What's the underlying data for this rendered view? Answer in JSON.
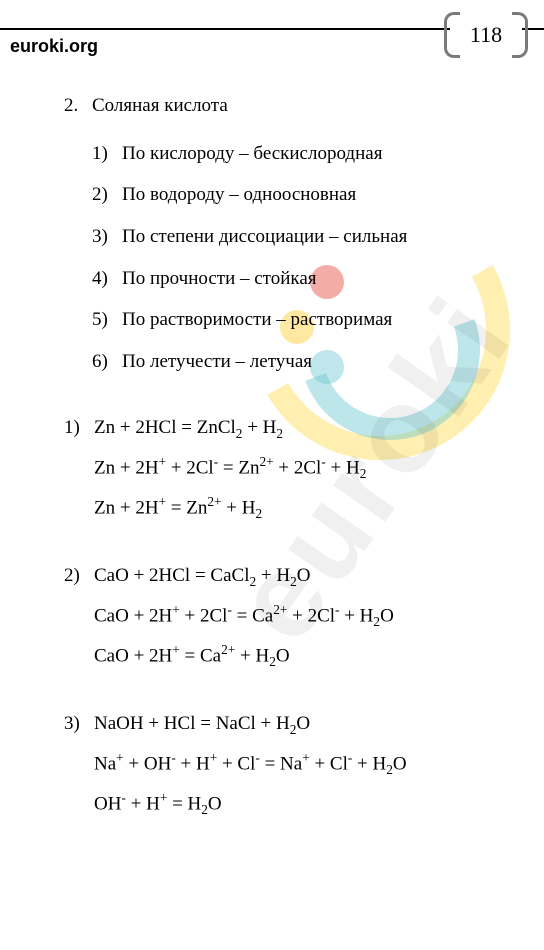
{
  "page_number": "118",
  "site": "euroki.org",
  "watermark_text": "euroki",
  "section": {
    "number": "2.",
    "title": "Соляная кислота",
    "properties": [
      {
        "n": "1)",
        "text": "По кислороду – бескислородная"
      },
      {
        "n": "2)",
        "text": "По водороду – одноосновная"
      },
      {
        "n": "3)",
        "text": "По степени диссоциации – сильная"
      },
      {
        "n": "4)",
        "text": "По прочности – стойкая"
      },
      {
        "n": "5)",
        "text": "По растворимости – растворимая"
      },
      {
        "n": "6)",
        "text": "По летучести – летучая"
      }
    ]
  },
  "equations": [
    {
      "n": "1)",
      "lines": [
        "Zn + 2HCl = ZnCl<sub>2</sub> + H<sub>2</sub>",
        "Zn + 2H<sup>+</sup> + 2Cl<sup>-</sup> = Zn<sup>2+</sup> + 2Cl<sup>-</sup> + H<sub>2</sub>",
        "Zn + 2H<sup>+</sup> = Zn<sup>2+</sup> + H<sub>2</sub>"
      ]
    },
    {
      "n": "2)",
      "lines": [
        "CaO + 2HCl = CaCl<sub>2</sub> + H<sub>2</sub>O",
        "CaO + 2H<sup>+</sup> + 2Cl<sup>-</sup> = Ca<sup>2+</sup> + 2Cl<sup>-</sup> + H<sub>2</sub>O",
        "CaO + 2H<sup>+</sup> = Ca<sup>2+</sup> + H<sub>2</sub>O"
      ]
    },
    {
      "n": "3)",
      "lines": [
        "NaOH + HCl = NaCl + H<sub>2</sub>O",
        "Na<sup>+</sup> + OH<sup>-</sup> + H<sup>+</sup> + Cl<sup>-</sup> = Na<sup>+</sup> + Cl<sup>-</sup> + H<sub>2</sub>O",
        "OH<sup>-</sup> + H<sup>+</sup> = H<sub>2</sub>O"
      ]
    }
  ]
}
